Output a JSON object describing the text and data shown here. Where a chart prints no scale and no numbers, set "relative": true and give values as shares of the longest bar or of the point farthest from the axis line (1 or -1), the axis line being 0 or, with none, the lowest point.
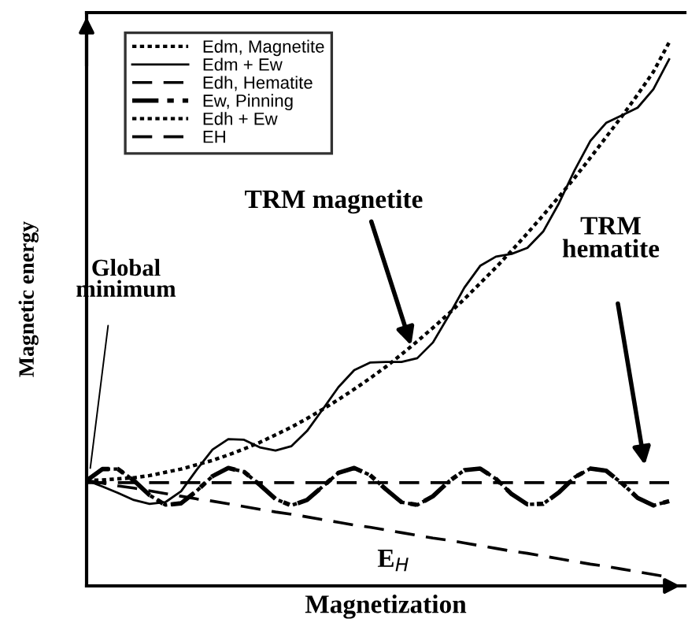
{
  "chart_data": {
    "type": "line",
    "relative": true,
    "xlabel": "Magnetization",
    "ylabel": "Magnetic energy",
    "categories": [
      null,
      null,
      null,
      null,
      null,
      null,
      null,
      null,
      null,
      null,
      null,
      null,
      null,
      null,
      null,
      null,
      null,
      null,
      null,
      null,
      null,
      null,
      null,
      null,
      null,
      null,
      null,
      null,
      null,
      null,
      null,
      null,
      null,
      null,
      null,
      null,
      null,
      null
    ],
    "series": [
      {
        "name": "Edm, Magnetite",
        "color": "#000000",
        "line_style": "dotted",
        "values": [
          0.194,
          0.195,
          0.197,
          0.199,
          0.203,
          0.209,
          0.215,
          0.223,
          0.231,
          0.241,
          0.252,
          0.264,
          0.278,
          0.292,
          0.308,
          0.325,
          0.343,
          0.362,
          0.382,
          0.403,
          0.426,
          0.45,
          0.475,
          0.501,
          0.528,
          0.557,
          0.586,
          0.617,
          0.649,
          0.682,
          0.716,
          0.751,
          0.788,
          0.826,
          0.864,
          0.904,
          0.946,
          1.0
        ]
      },
      {
        "name": "Edm + Ew",
        "color": "#000000",
        "line_style": "solid",
        "values": [
          0.194,
          0.183,
          0.171,
          0.158,
          0.151,
          0.154,
          0.174,
          0.214,
          0.251,
          0.27,
          0.269,
          0.255,
          0.249,
          0.257,
          0.285,
          0.325,
          0.366,
          0.397,
          0.411,
          0.412,
          0.412,
          0.419,
          0.448,
          0.497,
          0.549,
          0.589,
          0.606,
          0.611,
          0.622,
          0.652,
          0.704,
          0.765,
          0.819,
          0.852,
          0.866,
          0.88,
          0.914,
          0.969
        ]
      },
      {
        "name": "Edh, Hematite",
        "color": "#000000",
        "line_style": "dashed",
        "values": [
          0.19,
          0.19,
          0.19,
          0.19,
          0.19,
          0.19,
          0.19,
          0.19,
          0.19,
          0.19,
          0.19,
          0.19,
          0.19,
          0.19,
          0.19,
          0.19,
          0.19,
          0.19,
          0.19,
          0.19,
          0.19,
          0.19,
          0.19,
          0.19,
          0.19,
          0.19,
          0.19,
          0.19,
          0.19,
          0.19,
          0.19,
          0.19,
          0.19,
          0.19,
          0.19,
          0.19,
          0.19,
          0.19
        ]
      },
      {
        "name": "Ew, Pinning",
        "color": "#000000",
        "line_style": "dashdot",
        "values": [
          0.194,
          0.215,
          0.215,
          0.194,
          0.167,
          0.149,
          0.152,
          0.175,
          0.202,
          0.217,
          0.21,
          0.186,
          0.16,
          0.148,
          0.158,
          0.183,
          0.208,
          0.217,
          0.204,
          0.178,
          0.154,
          0.149,
          0.165,
          0.192,
          0.213,
          0.216,
          0.197,
          0.169,
          0.15,
          0.151,
          0.172,
          0.2,
          0.216,
          0.212,
          0.189,
          0.162,
          0.148,
          0.156
        ]
      },
      {
        "name": "Edh + Ew",
        "color": "#000000",
        "line_style": "dotted",
        "values": [
          0.194,
          0.215,
          0.215,
          0.194,
          0.167,
          0.149,
          0.152,
          0.175,
          0.202,
          0.217,
          0.21,
          0.186,
          0.16,
          0.148,
          0.158,
          0.183,
          0.208,
          0.217,
          0.204,
          0.178,
          0.154,
          0.149,
          0.165,
          0.192,
          0.213,
          0.216,
          0.197,
          0.169,
          0.15,
          0.151,
          0.172,
          0.2,
          0.216,
          0.212,
          0.189,
          0.162,
          0.148,
          0.156
        ]
      },
      {
        "name": "EH",
        "color": "#000000",
        "line_style": "dashed",
        "values": [
          0.194,
          0.189,
          0.184,
          0.18,
          0.175,
          0.17,
          0.165,
          0.16,
          0.156,
          0.151,
          0.146,
          0.141,
          0.136,
          0.132,
          0.127,
          0.122,
          0.117,
          0.112,
          0.108,
          0.103,
          0.098,
          0.093,
          0.088,
          0.084,
          0.079,
          0.074,
          0.069,
          0.064,
          0.06,
          0.055,
          0.05,
          0.045,
          0.04,
          0.036,
          0.031,
          0.026,
          0.021,
          0.016
        ]
      }
    ],
    "annotations": [
      "Global\nminimum",
      "TRM magnetite",
      "TRM\nhematite",
      "E$_{H}$"
    ],
    "legend": "top left"
  }
}
